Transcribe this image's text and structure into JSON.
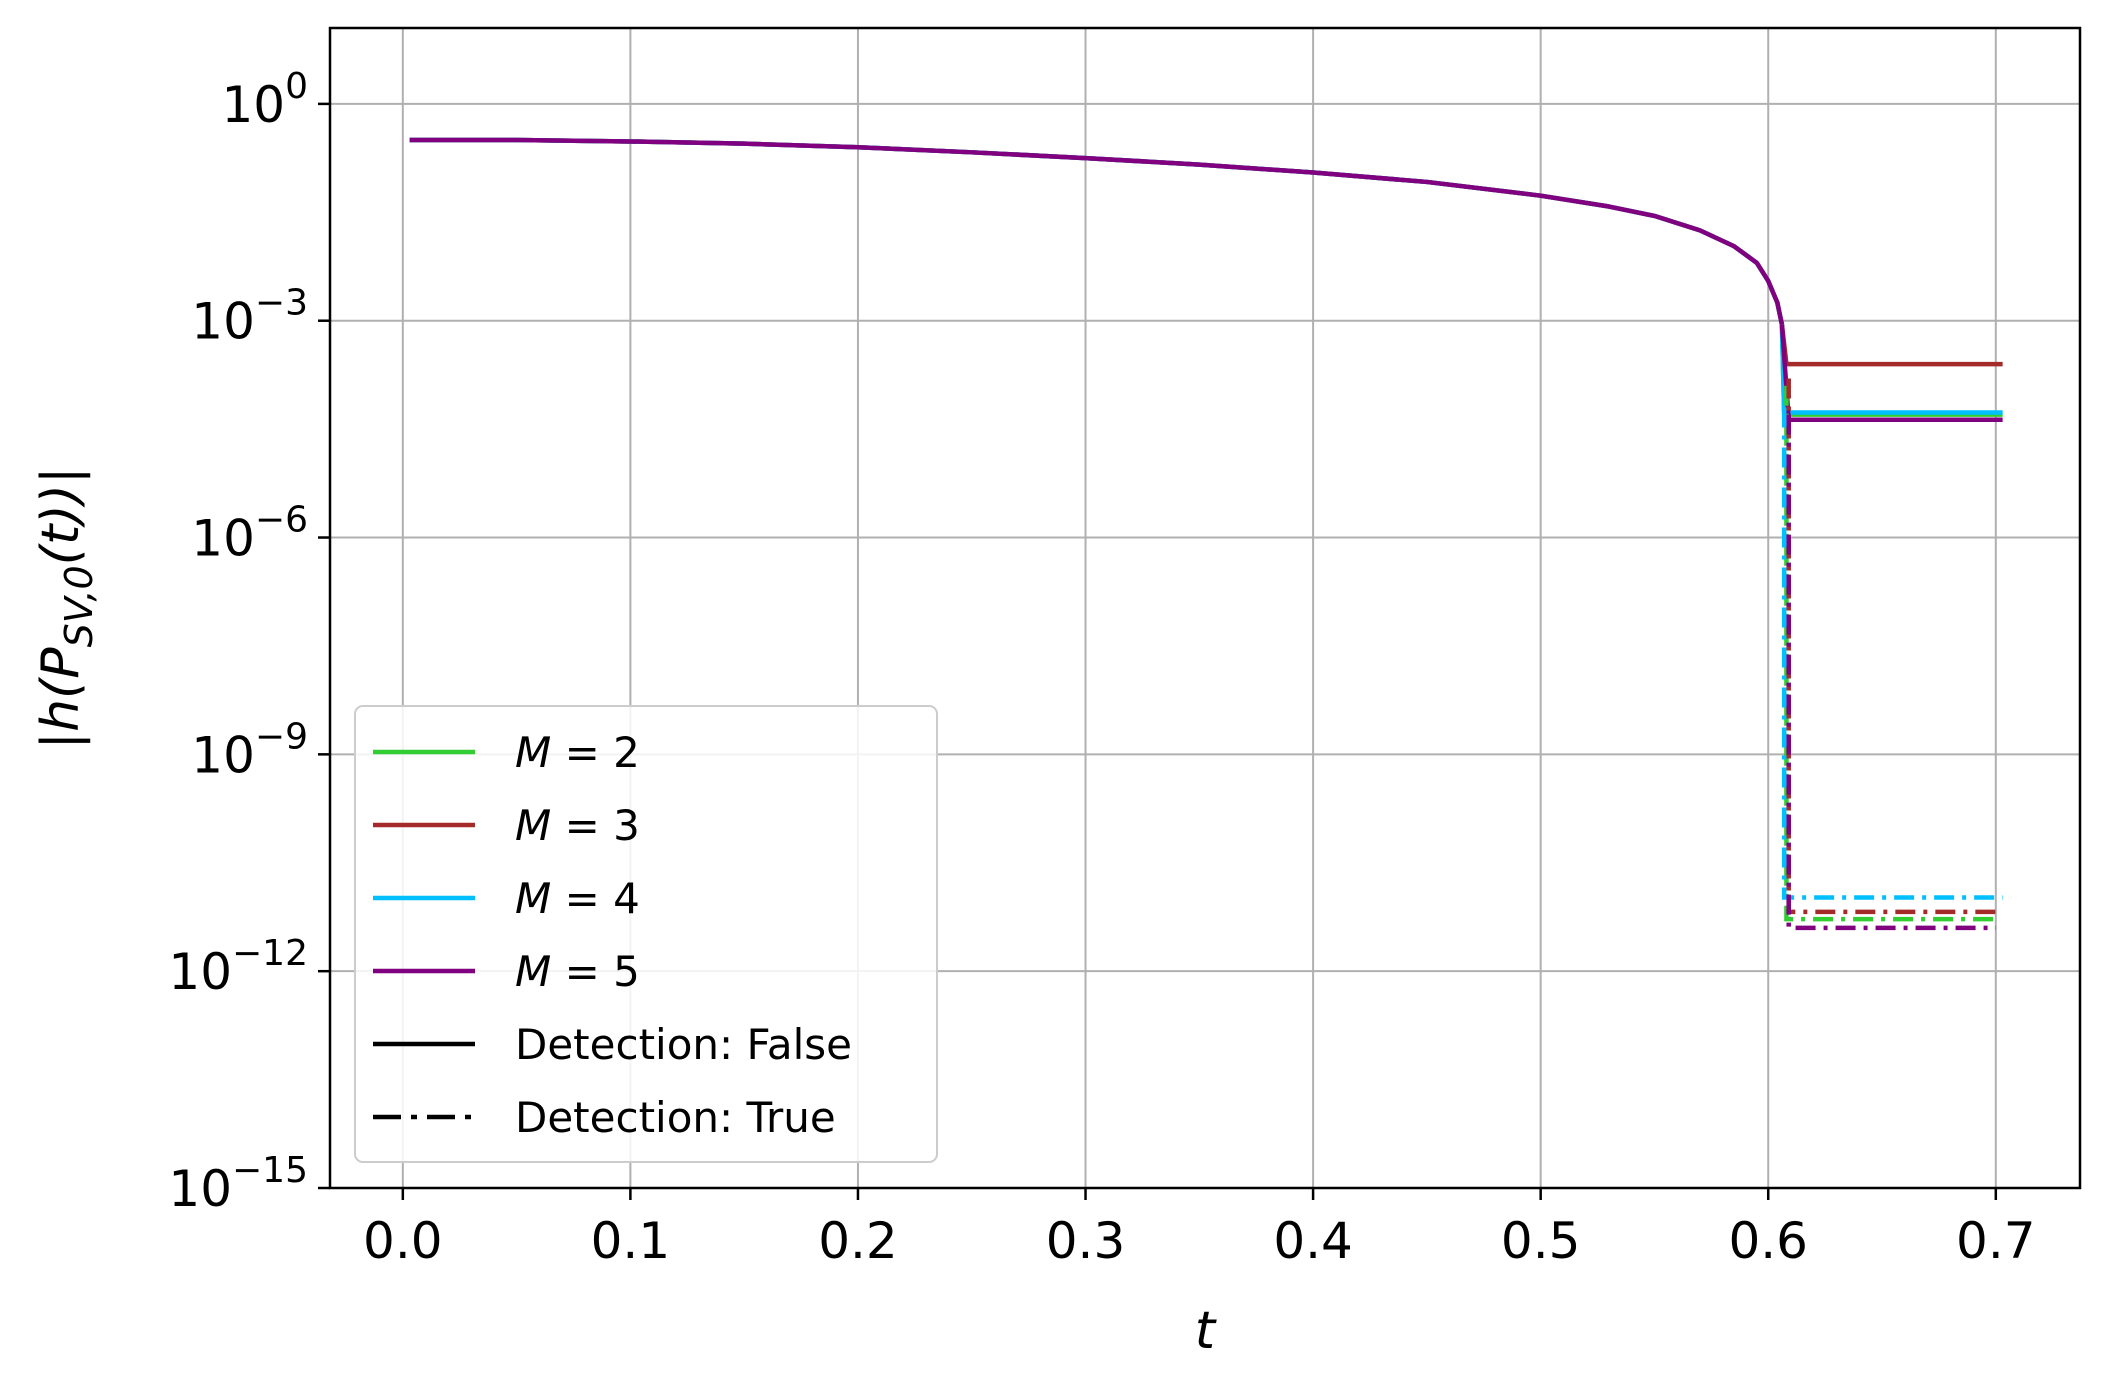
{
  "chart_data": {
    "type": "line",
    "title": "",
    "xlabel": "t",
    "ylabel": "|h(P_{SV,0}(t))|",
    "xlim": [
      -0.032,
      0.737
    ],
    "ylim_log10": [
      -15,
      1.05
    ],
    "yscale": "log",
    "grid": true,
    "legend_position": "lower-left",
    "xticks": [
      {
        "value": 0.0,
        "label": "0.0"
      },
      {
        "value": 0.1,
        "label": "0.1"
      },
      {
        "value": 0.2,
        "label": "0.2"
      },
      {
        "value": 0.3,
        "label": "0.3"
      },
      {
        "value": 0.4,
        "label": "0.4"
      },
      {
        "value": 0.5,
        "label": "0.5"
      },
      {
        "value": 0.6,
        "label": "0.6"
      },
      {
        "value": 0.7,
        "label": "0.7"
      }
    ],
    "yticks": [
      {
        "exp": 0,
        "base": "10",
        "sup": "0"
      },
      {
        "exp": -3,
        "base": "10",
        "sup": "−3"
      },
      {
        "exp": -6,
        "base": "10",
        "sup": "−6"
      },
      {
        "exp": -9,
        "base": "10",
        "sup": "−9"
      },
      {
        "exp": -12,
        "base": "10",
        "sup": "−12"
      },
      {
        "exp": -15,
        "base": "10",
        "sup": "−15"
      }
    ],
    "common_curve_log10": [
      [
        0.003,
        -0.5
      ],
      [
        0.05,
        -0.5
      ],
      [
        0.1,
        -0.52
      ],
      [
        0.15,
        -0.55
      ],
      [
        0.2,
        -0.6
      ],
      [
        0.25,
        -0.67
      ],
      [
        0.3,
        -0.75
      ],
      [
        0.35,
        -0.84
      ],
      [
        0.4,
        -0.95
      ],
      [
        0.45,
        -1.08
      ],
      [
        0.5,
        -1.27
      ],
      [
        0.53,
        -1.42
      ],
      [
        0.55,
        -1.55
      ],
      [
        0.57,
        -1.75
      ],
      [
        0.585,
        -1.97
      ],
      [
        0.595,
        -2.2
      ],
      [
        0.6,
        -2.45
      ],
      [
        0.604,
        -2.75
      ],
      [
        0.606,
        -3.05
      ]
    ],
    "series": [
      {
        "name": "M = 2",
        "detection": false,
        "color": "#32cd32",
        "branch_from": [
          0.606,
          -3.05
        ],
        "drop_x": 0.607,
        "level_log10": -4.3,
        "x_end": 0.703
      },
      {
        "name": "M = 3",
        "detection": false,
        "color": "#a52a2a",
        "branch_from": [
          0.606,
          -3.05
        ],
        "drop_x": 0.608,
        "level_log10": -3.6,
        "x_end": 0.703
      },
      {
        "name": "M = 4",
        "detection": false,
        "color": "#00bfff",
        "branch_from": [
          0.606,
          -3.05
        ],
        "drop_x": 0.607,
        "level_log10": -4.27,
        "x_end": 0.703
      },
      {
        "name": "M = 5",
        "detection": false,
        "color": "#800080",
        "branch_from": [
          0.606,
          -3.05
        ],
        "drop_x": 0.609,
        "level_log10": -4.37,
        "x_end": 0.703
      },
      {
        "name": "M = 2",
        "detection": true,
        "color": "#32cd32",
        "drop_x": 0.608,
        "start_log10": -3.9,
        "level_log10": -11.28,
        "x_end": 0.7
      },
      {
        "name": "M = 3",
        "detection": true,
        "color": "#a52a2a",
        "drop_x": 0.609,
        "start_log10": -3.8,
        "level_log10": -11.18,
        "x_end": 0.7
      },
      {
        "name": "M = 4",
        "detection": true,
        "color": "#00bfff",
        "drop_x": 0.607,
        "start_log10": -4.2,
        "level_log10": -10.98,
        "x_end": 0.703
      },
      {
        "name": "M = 5",
        "detection": true,
        "color": "#800080",
        "drop_x": 0.609,
        "start_log10": -4.3,
        "level_log10": -11.4,
        "x_end": 0.7
      }
    ],
    "legend": [
      {
        "label": "M = 2",
        "label_m": "M",
        "label_rest": " = 2",
        "color": "#32cd32",
        "style": "solid"
      },
      {
        "label": "M = 3",
        "label_m": "M",
        "label_rest": " = 3",
        "color": "#a52a2a",
        "style": "solid"
      },
      {
        "label": "M = 4",
        "label_m": "M",
        "label_rest": " = 4",
        "color": "#00bfff",
        "style": "solid"
      },
      {
        "label": "M = 5",
        "label_m": "M",
        "label_rest": " = 5",
        "color": "#800080",
        "style": "solid"
      },
      {
        "label": "Detection: False",
        "color": "#000000",
        "style": "solid"
      },
      {
        "label": "Detection: True",
        "color": "#000000",
        "style": "dashdot"
      }
    ]
  }
}
